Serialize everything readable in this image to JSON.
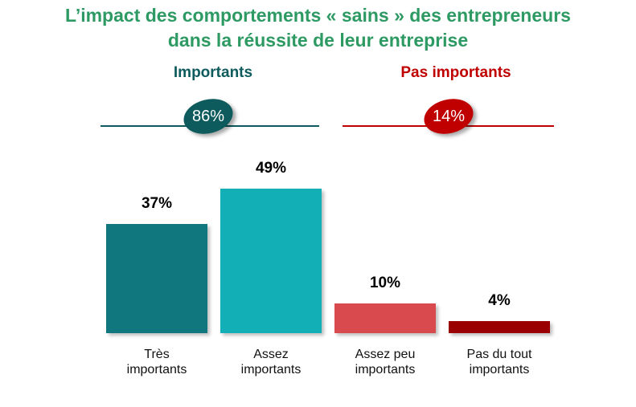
{
  "chart_data": {
    "type": "bar",
    "title": [
      "L’impact des comportements « sains » des entrepreneurs",
      "dans la réussite de leur entreprise"
    ],
    "categories": [
      [
        "Très",
        "importants"
      ],
      [
        "Assez",
        "importants"
      ],
      [
        "Assez peu",
        "importants"
      ],
      [
        "Pas du tout",
        "importants"
      ]
    ],
    "values": [
      37,
      49,
      10,
      4
    ],
    "value_labels": [
      "37%",
      "49%",
      "10%",
      "4%"
    ],
    "colors": [
      "#10777e",
      "#13afb7",
      "#d94a4e",
      "#9a0000"
    ],
    "ylim": [
      0,
      49
    ],
    "groups": [
      {
        "label": "Importants",
        "total": "86%",
        "color": "#0d5b5c"
      },
      {
        "label": "Pas importants",
        "total": "14%",
        "color": "#c00000"
      }
    ]
  }
}
